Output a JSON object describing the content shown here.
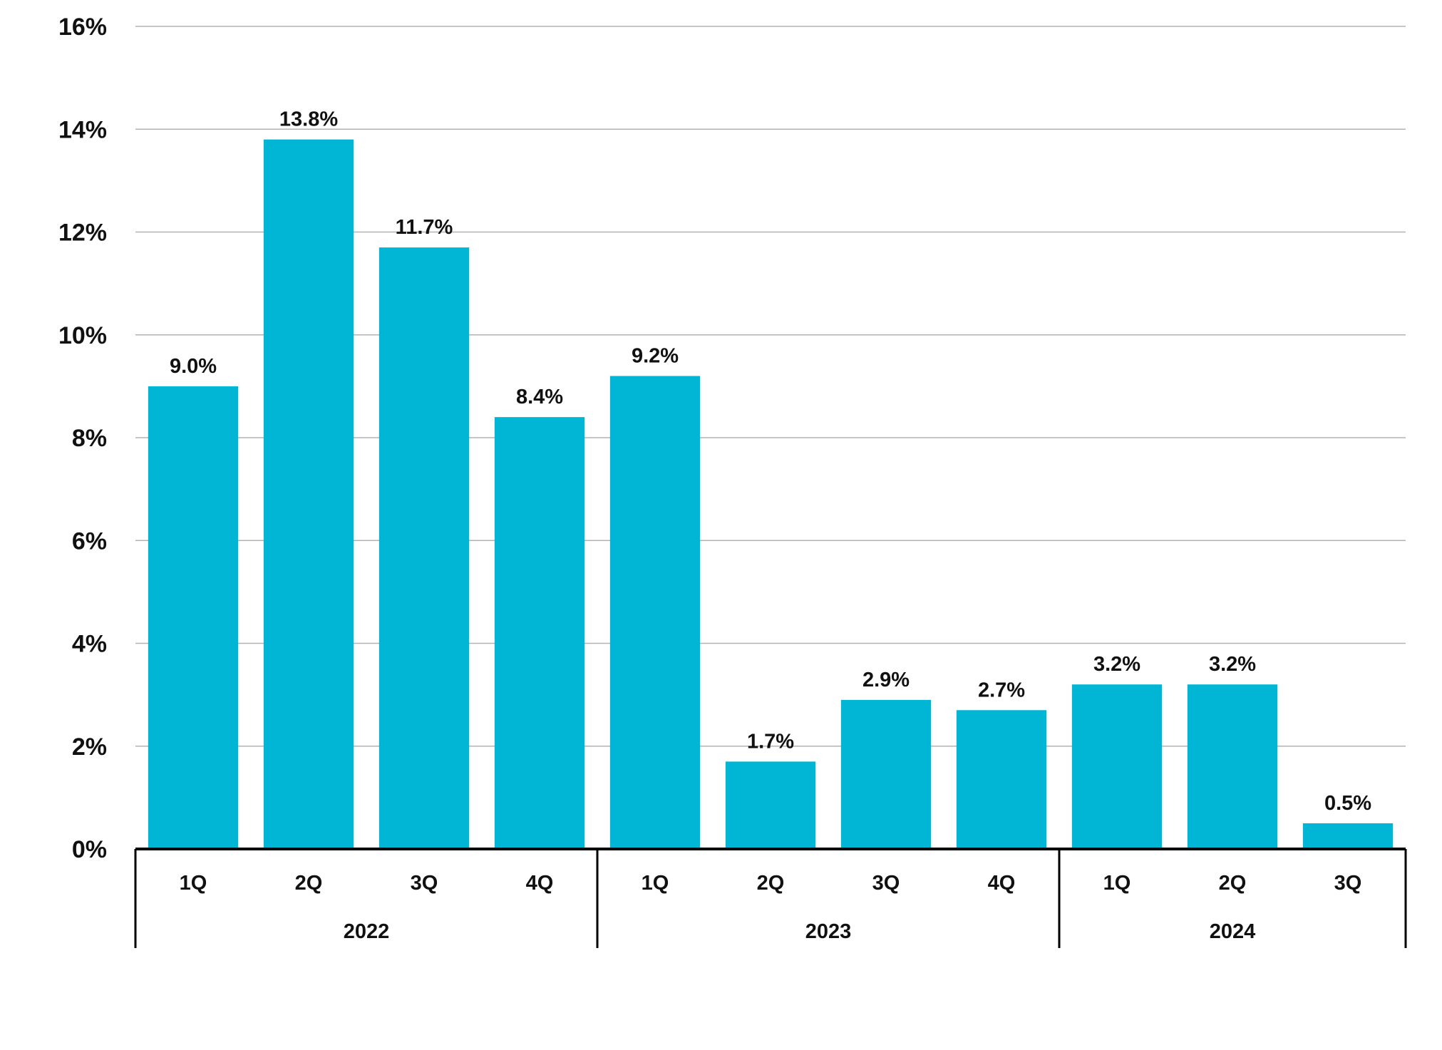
{
  "chart_data": {
    "type": "bar",
    "title": "",
    "xlabel": "",
    "ylabel": "",
    "ylim": [
      0,
      16
    ],
    "y_ticks": [
      0,
      2,
      4,
      6,
      8,
      10,
      12,
      14,
      16
    ],
    "y_tick_labels": [
      "0%",
      "2%",
      "4%",
      "6%",
      "8%",
      "10%",
      "12%",
      "14%",
      "16%"
    ],
    "grid": true,
    "legend": "none",
    "bar_color": "#00B6D4",
    "categories": [
      "1Q",
      "2Q",
      "3Q",
      "4Q",
      "1Q",
      "2Q",
      "3Q",
      "4Q",
      "1Q",
      "2Q",
      "3Q"
    ],
    "values": [
      9.0,
      13.8,
      11.7,
      8.4,
      9.2,
      1.7,
      2.9,
      2.7,
      3.2,
      3.2,
      0.5
    ],
    "data_labels": [
      "9.0%",
      "13.8%",
      "11.7%",
      "8.4%",
      "9.2%",
      "1.7%",
      "2.9%",
      "2.7%",
      "3.2%",
      "3.2%",
      "0.5%"
    ],
    "groups": [
      {
        "label": "2022",
        "count": 4
      },
      {
        "label": "2023",
        "count": 4
      },
      {
        "label": "2024",
        "count": 3
      }
    ]
  }
}
